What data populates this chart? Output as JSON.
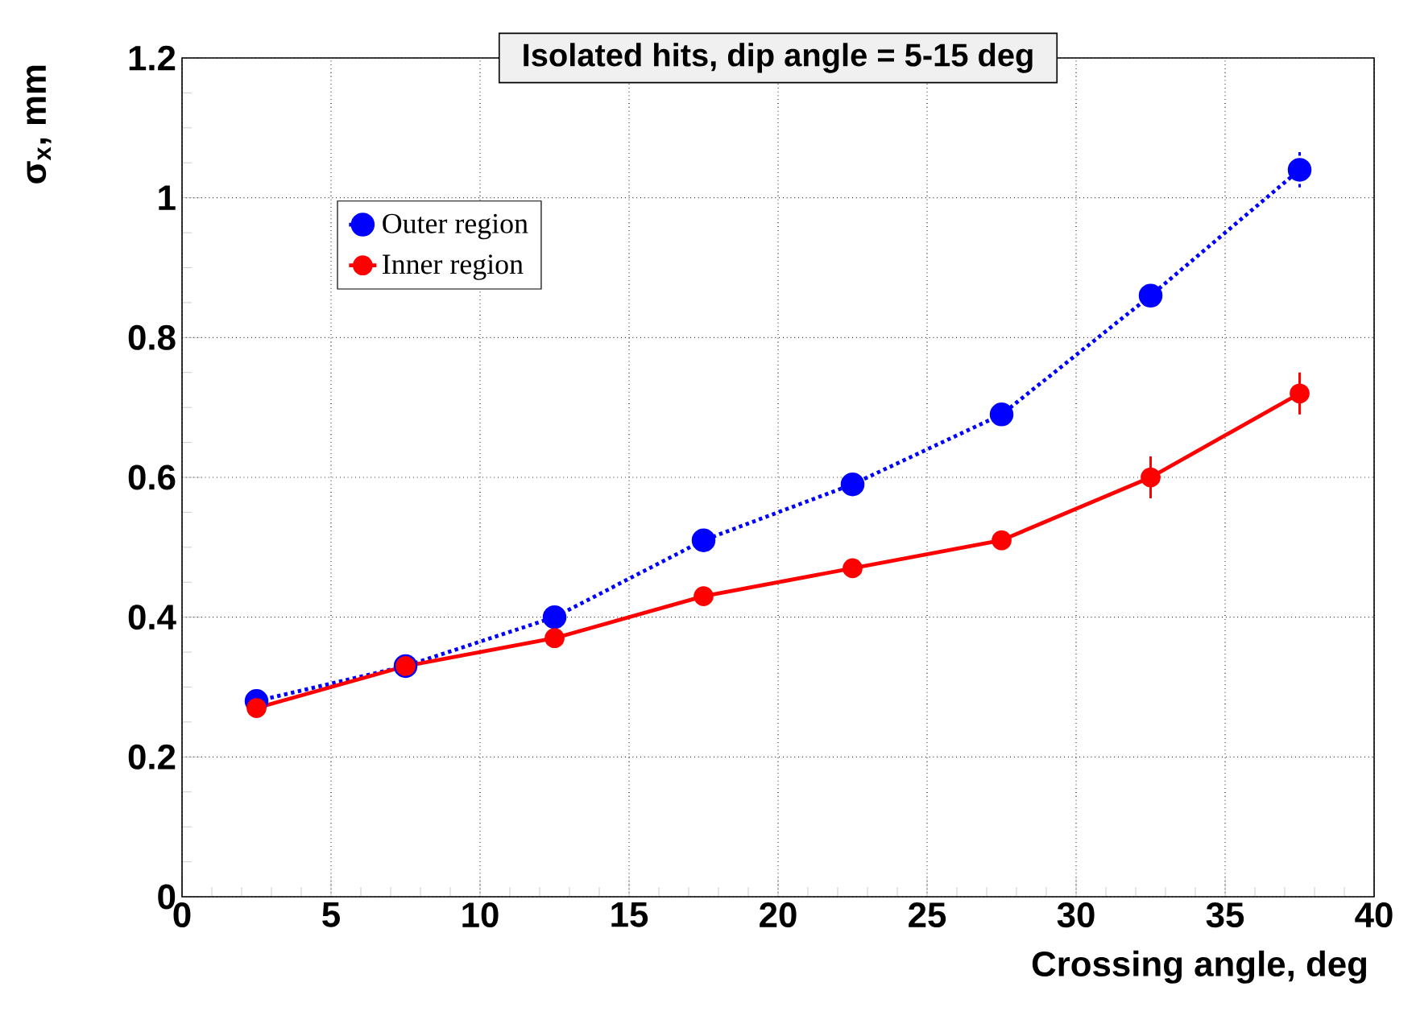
{
  "chart_data": {
    "type": "line",
    "title": "Isolated hits, dip angle = 5-15 deg",
    "xlabel": "Crossing angle, deg",
    "ylabel": "σ$_{x}$, mm",
    "x": [
      2.5,
      7.5,
      12.5,
      17.5,
      22.5,
      27.5,
      32.5,
      37.5
    ],
    "series": [
      {
        "name": "Outer region",
        "color": "#0000ff",
        "line_style": "dotted",
        "values": [
          0.28,
          0.33,
          0.4,
          0.51,
          0.59,
          0.69,
          0.86,
          1.04
        ],
        "errors": [
          null,
          null,
          null,
          null,
          null,
          null,
          null,
          0.03
        ]
      },
      {
        "name": "Inner region",
        "color": "#ff0000",
        "line_style": "solid",
        "values": [
          0.27,
          0.33,
          0.37,
          0.43,
          0.47,
          0.51,
          0.6,
          0.72
        ],
        "errors": [
          null,
          null,
          null,
          null,
          null,
          null,
          0.03,
          0.03
        ]
      }
    ],
    "xlim": [
      0,
      40
    ],
    "xticks": [
      0,
      5,
      10,
      15,
      20,
      25,
      30,
      35,
      40
    ],
    "ylim": [
      0,
      1.2
    ],
    "yticks": [
      0,
      0.2,
      0.4,
      0.6,
      0.8,
      1,
      1.2
    ],
    "grid": true,
    "legend": "top left",
    "marker": "circle"
  }
}
